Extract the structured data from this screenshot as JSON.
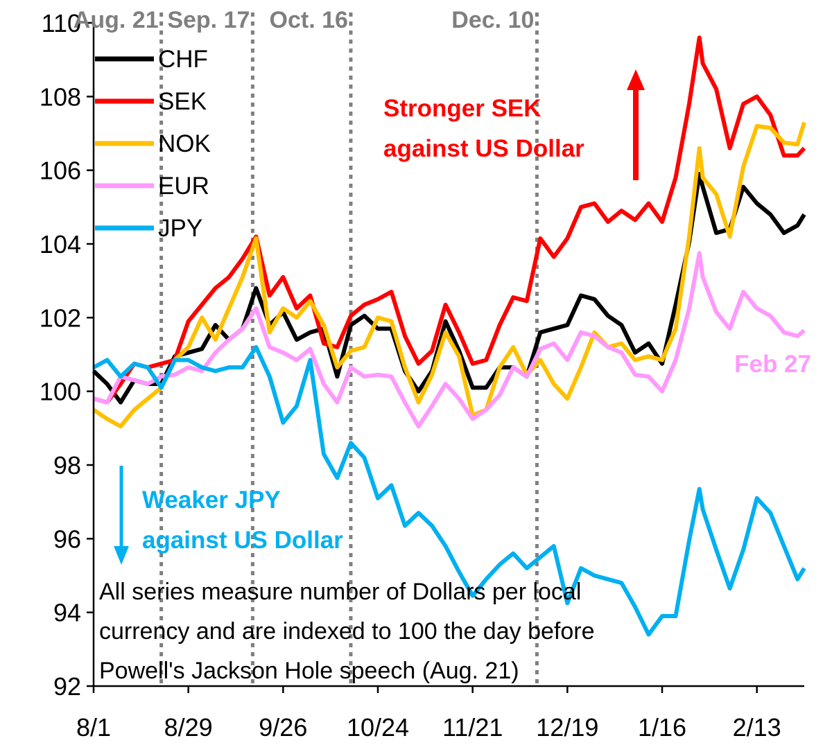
{
  "chart_data": {
    "type": "line",
    "title": "",
    "xlabel": "",
    "ylabel": "",
    "ylim": [
      92,
      110
    ],
    "yticks": [
      "92",
      "94",
      "96",
      "98",
      "100",
      "102",
      "104",
      "106",
      "108",
      "110"
    ],
    "xticks": [
      "8/1",
      "8/29",
      "9/26",
      "10/24",
      "11/21",
      "12/19",
      "1/16",
      "2/13"
    ],
    "x_range": [
      "8/1",
      "2/27"
    ],
    "grid": false,
    "legend_placement": "top-left",
    "x": [
      "8/1",
      "8/5",
      "8/9",
      "8/13",
      "8/17",
      "8/21",
      "8/25",
      "8/29",
      "9/2",
      "9/6",
      "9/10",
      "9/14",
      "9/18",
      "9/22",
      "9/26",
      "9/30",
      "10/4",
      "10/8",
      "10/12",
      "10/16",
      "10/20",
      "10/24",
      "10/28",
      "11/1",
      "11/5",
      "11/9",
      "11/13",
      "11/17",
      "11/21",
      "11/25",
      "11/29",
      "12/3",
      "12/7",
      "12/11",
      "12/15",
      "12/19",
      "12/23",
      "12/27",
      "12/31",
      "1/4",
      "1/8",
      "1/12",
      "1/16",
      "1/20",
      "1/24",
      "1/27",
      "1/28",
      "2/1",
      "2/5",
      "2/9",
      "2/13",
      "2/17",
      "2/21",
      "2/25",
      "2/27"
    ],
    "series": [
      {
        "name": "CHF",
        "color": "#000000",
        "values": [
          100.55,
          100.2,
          99.7,
          100.3,
          100.2,
          100.2,
          100.95,
          101.05,
          101.15,
          101.8,
          101.4,
          101.7,
          102.8,
          101.8,
          102.15,
          101.4,
          101.6,
          101.7,
          100.4,
          101.8,
          102.05,
          101.7,
          101.7,
          100.55,
          100.0,
          100.55,
          101.9,
          101.1,
          100.1,
          100.1,
          100.65,
          100.65,
          100.4,
          101.6,
          101.7,
          101.8,
          102.6,
          102.5,
          102.05,
          101.8,
          101.05,
          101.3,
          100.75,
          102.35,
          104.05,
          105.9,
          105.55,
          104.3,
          104.4,
          105.55,
          105.1,
          104.8,
          104.3,
          104.5,
          104.8
        ]
      },
      {
        "name": "SEK",
        "color": "#ff0000",
        "values": [
          99.8,
          99.7,
          100.2,
          100.75,
          100.65,
          100.75,
          100.85,
          101.9,
          102.35,
          102.8,
          103.1,
          103.6,
          104.2,
          102.6,
          103.1,
          102.25,
          102.6,
          101.3,
          101.2,
          102.05,
          102.35,
          102.5,
          102.7,
          101.5,
          100.75,
          101.1,
          102.35,
          101.6,
          100.75,
          100.85,
          101.8,
          102.55,
          102.45,
          104.15,
          103.65,
          104.15,
          105.0,
          105.1,
          104.6,
          104.9,
          104.65,
          105.1,
          104.6,
          105.8,
          107.8,
          109.6,
          108.9,
          108.2,
          106.6,
          107.8,
          108.0,
          107.5,
          106.4,
          106.4,
          106.6
        ]
      },
      {
        "name": "NOK",
        "color": "#ffc000",
        "values": [
          99.5,
          99.25,
          99.05,
          99.5,
          99.8,
          100.1,
          100.85,
          101.2,
          102.0,
          101.4,
          102.25,
          103.1,
          104.15,
          101.6,
          102.25,
          102.0,
          102.45,
          101.8,
          100.65,
          101.1,
          101.2,
          102.0,
          101.9,
          100.65,
          99.7,
          100.45,
          101.6,
          100.95,
          99.35,
          99.5,
          100.65,
          101.2,
          100.45,
          100.85,
          100.2,
          99.8,
          100.65,
          101.6,
          101.2,
          101.3,
          100.85,
          100.95,
          100.85,
          101.7,
          104.2,
          106.6,
          105.8,
          105.35,
          104.2,
          106.1,
          107.2,
          107.15,
          106.75,
          106.7,
          107.3
        ]
      },
      {
        "name": "EUR",
        "color": "#ff99ff",
        "values": [
          99.8,
          99.7,
          100.4,
          100.3,
          100.2,
          100.4,
          100.45,
          100.65,
          100.55,
          101.05,
          101.4,
          101.7,
          102.25,
          101.2,
          101.05,
          100.85,
          101.15,
          100.2,
          99.7,
          100.65,
          100.4,
          100.45,
          100.4,
          99.7,
          99.05,
          99.6,
          100.2,
          99.8,
          99.25,
          99.5,
          99.9,
          100.65,
          100.4,
          101.15,
          101.3,
          100.85,
          101.6,
          101.5,
          101.2,
          101.05,
          100.45,
          100.4,
          100.0,
          100.85,
          102.25,
          103.75,
          103.1,
          102.15,
          101.7,
          102.7,
          102.25,
          102.05,
          101.6,
          101.5,
          101.65
        ]
      },
      {
        "name": "JPY",
        "color": "#00b0f0",
        "values": [
          100.65,
          100.85,
          100.4,
          100.75,
          100.65,
          100.1,
          100.85,
          100.85,
          100.65,
          100.55,
          100.65,
          100.65,
          101.2,
          100.4,
          99.15,
          99.6,
          100.85,
          98.3,
          97.65,
          98.6,
          98.2,
          97.1,
          97.45,
          96.35,
          96.7,
          96.35,
          95.8,
          95.1,
          94.45,
          94.9,
          95.3,
          95.6,
          95.2,
          95.5,
          95.8,
          94.25,
          95.2,
          95.0,
          94.9,
          94.8,
          94.15,
          93.4,
          93.9,
          93.9,
          95.95,
          97.35,
          96.8,
          95.7,
          94.65,
          95.7,
          97.1,
          96.7,
          95.8,
          94.9,
          95.2
        ]
      }
    ],
    "event_lines": [
      {
        "date": "8/21",
        "label": "Aug. 21"
      },
      {
        "date": "9/17",
        "label": "Sep. 17"
      },
      {
        "date": "10/16",
        "label": "Oct. 16"
      },
      {
        "date": "12/10",
        "label": "Dec. 10"
      }
    ],
    "annotations": {
      "sek": {
        "lines": [
          "Stronger SEK",
          "against US Dollar"
        ],
        "color": "#ff0000",
        "arrow": "up"
      },
      "jpy": {
        "lines": [
          "Weaker JPY",
          "against US Dollar"
        ],
        "color": "#00b0f0",
        "arrow": "down"
      },
      "end_label": {
        "text": "Feb 27",
        "color": "#ff99ff"
      },
      "note": {
        "lines": [
          "All series measure number of Dollars per local",
          "currency and are indexed to 100 the day before",
          "Powell's Jackson Hole speech (Aug. 21)"
        ]
      }
    }
  }
}
